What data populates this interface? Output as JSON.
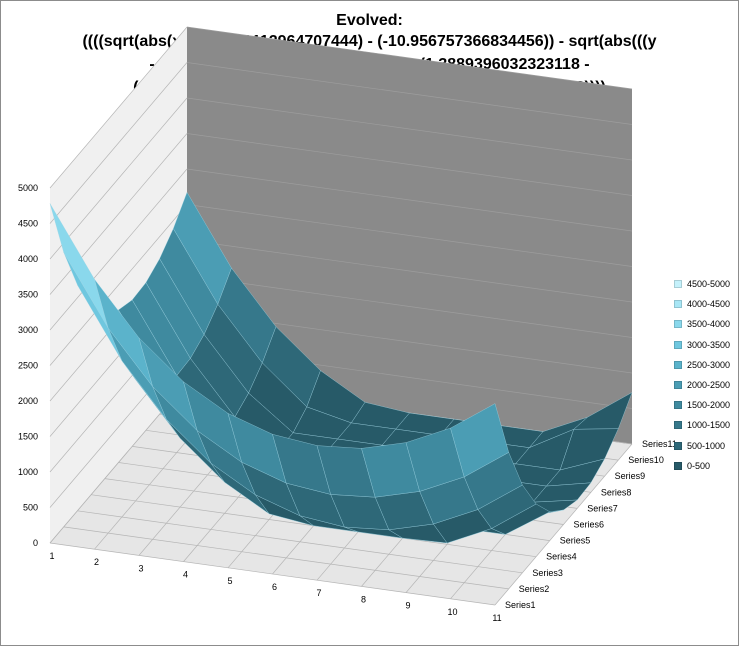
{
  "title_lines": [
    "Evolved:",
    "((((sqrt(abs(x)))^(3.990112964707444) - (-10.956757366834456)) - sqrt(abs(((y",
    "- y) - (y - (-103.8607727164068)))))) - (1.3889396032323118 -",
    "((sqrt(abs(y)))^(3.969935094486101) - (-0.8998898582159343))))"
  ],
  "chart_data": {
    "type": "surface",
    "title": "Evolved: ((((sqrt(abs(x)))^(3.990112964707444) - (-10.956757366834456)) - sqrt(abs(((y - y) - (y - (-103.8607727164068)))))) - (1.3889396032323118 - ((sqrt(abs(y)))^(3.969935094486101) - (-0.8998898582159343))))",
    "x_categories": [
      "1",
      "2",
      "3",
      "4",
      "5",
      "6",
      "7",
      "8",
      "9",
      "10",
      "11"
    ],
    "y_series": [
      "Series1",
      "Series2",
      "Series3",
      "Series4",
      "Series5",
      "Series6",
      "Series7",
      "Series8",
      "Series9",
      "Series10",
      "Series11"
    ],
    "z_axis": {
      "min": 0,
      "max": 5000,
      "step": 500,
      "ticks": [
        "0",
        "500",
        "1000",
        "1500",
        "2000",
        "2500",
        "3000",
        "3500",
        "4000",
        "4500",
        "5000"
      ]
    },
    "z_values": [
      [
        4782,
        3802,
        3064,
        2532,
        2174,
        1968,
        1896,
        1944,
        2112,
        2404,
        2836
      ],
      [
        3868,
        2888,
        2150,
        1618,
        1260,
        1054,
        982,
        1030,
        1198,
        1490,
        1922
      ],
      [
        3182,
        2202,
        1464,
        932,
        574,
        368,
        296,
        344,
        512,
        804,
        1236
      ],
      [
        2688,
        1708,
        970,
        438,
        80,
        0,
        0,
        0,
        18,
        310,
        742
      ],
      [
        2352,
        1372,
        634,
        102,
        0,
        0,
        0,
        0,
        0,
        0,
        406
      ],
      [
        2150,
        1170,
        432,
        0,
        0,
        0,
        0,
        0,
        0,
        0,
        204
      ],
      [
        2064,
        1084,
        346,
        0,
        0,
        0,
        0,
        0,
        0,
        0,
        118
      ],
      [
        2080,
        1100,
        362,
        0,
        0,
        0,
        0,
        0,
        0,
        0,
        134
      ],
      [
        2190,
        1210,
        472,
        0,
        0,
        0,
        0,
        0,
        0,
        0,
        244
      ],
      [
        2388,
        1408,
        670,
        138,
        0,
        0,
        0,
        0,
        0,
        346,
        442
      ],
      [
        2672,
        1692,
        954,
        422,
        64,
        0,
        0,
        0,
        0,
        290,
        726
      ]
    ],
    "legend": [
      "4500-5000",
      "4000-4500",
      "3500-4000",
      "3000-3500",
      "2500-3000",
      "2000-2500",
      "1500-2000",
      "1000-1500",
      "500-1000",
      "0-500"
    ],
    "legend_colors": [
      "#c5f1fb",
      "#a8e6f5",
      "#8ad8ec",
      "#6fc7df",
      "#5bb3cb",
      "#4b9db4",
      "#3f8a9f",
      "#36788b",
      "#2e6878",
      "#275a68"
    ],
    "walls": {
      "back_right_color": "#8a8a8a",
      "floor_color": "#e6e6e6",
      "left_wall_color": "#f0f0f0",
      "gridline_color": "#b5b5b5"
    },
    "legend_position": "right"
  }
}
